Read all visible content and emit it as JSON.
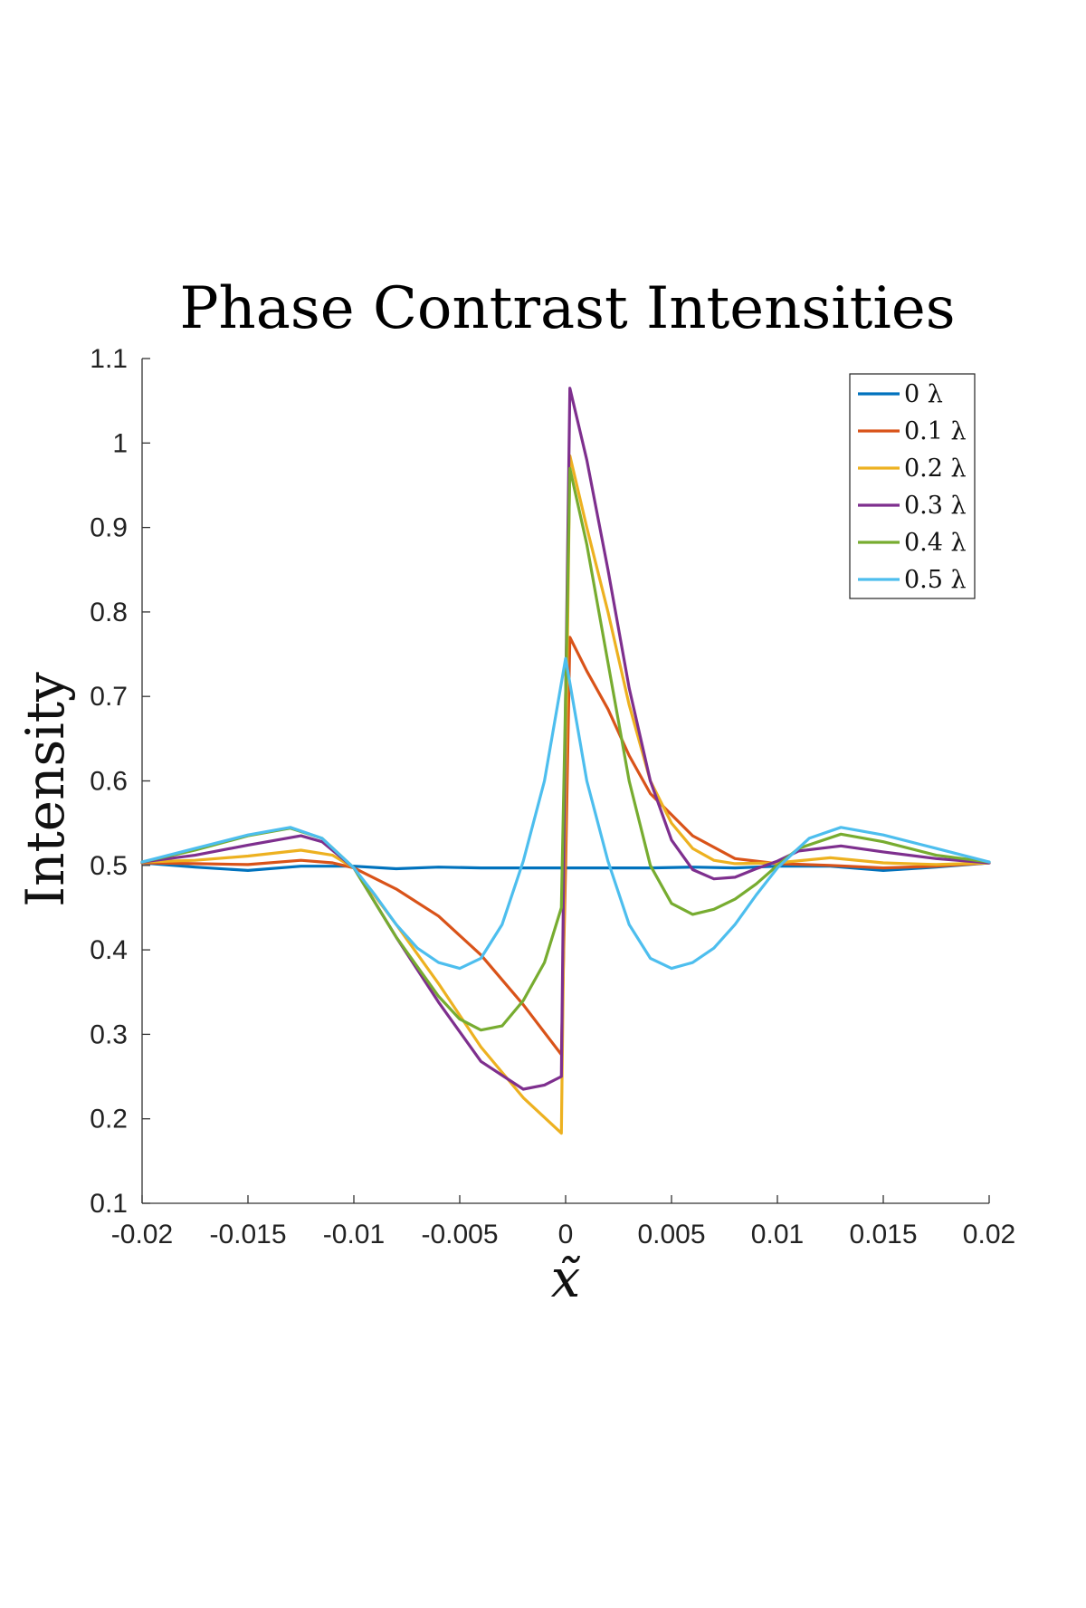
{
  "chart_data": {
    "type": "line",
    "title": "Phase Contrast Intensities",
    "xlabel": "x̃",
    "ylabel": "Intensity",
    "xlim": [
      -0.02,
      0.02
    ],
    "ylim": [
      0.1,
      1.1
    ],
    "xticks": [
      -0.02,
      -0.015,
      -0.01,
      -0.005,
      0,
      0.005,
      0.01,
      0.015,
      0.02
    ],
    "xtick_labels": [
      "-0.02",
      "-0.015",
      "-0.01",
      "-0.005",
      "0",
      "0.005",
      "0.01",
      "0.015",
      "0.02"
    ],
    "yticks": [
      0.1,
      0.2,
      0.3,
      0.4,
      0.5,
      0.6,
      0.7,
      0.8,
      0.9,
      1,
      1.1
    ],
    "ytick_labels": [
      "0.1",
      "0.2",
      "0.3",
      "0.4",
      "0.5",
      "0.6",
      "0.7",
      "0.8",
      "0.9",
      "1",
      "1.1"
    ],
    "grid": false,
    "legend_position": "top-right",
    "series": [
      {
        "name": "0 λ",
        "color": "#0072BD",
        "points": [
          [
            -0.02,
            0.503
          ],
          [
            -0.0175,
            0.498
          ],
          [
            -0.015,
            0.494
          ],
          [
            -0.0125,
            0.499
          ],
          [
            -0.01,
            0.499
          ],
          [
            -0.008,
            0.496
          ],
          [
            -0.006,
            0.498
          ],
          [
            -0.004,
            0.497
          ],
          [
            -0.002,
            0.497
          ],
          [
            -0.0002,
            0.497
          ],
          [
            0.0002,
            0.497
          ],
          [
            0.002,
            0.497
          ],
          [
            0.004,
            0.497
          ],
          [
            0.006,
            0.498
          ],
          [
            0.008,
            0.497
          ],
          [
            0.01,
            0.499
          ],
          [
            0.0125,
            0.499
          ],
          [
            0.015,
            0.494
          ],
          [
            0.0175,
            0.498
          ],
          [
            0.02,
            0.503
          ]
        ]
      },
      {
        "name": "0.1 λ",
        "color": "#D95319",
        "points": [
          [
            -0.02,
            0.503
          ],
          [
            -0.0175,
            0.502
          ],
          [
            -0.015,
            0.501
          ],
          [
            -0.0125,
            0.506
          ],
          [
            -0.011,
            0.503
          ],
          [
            -0.01,
            0.497
          ],
          [
            -0.008,
            0.472
          ],
          [
            -0.006,
            0.44
          ],
          [
            -0.004,
            0.394
          ],
          [
            -0.002,
            0.335
          ],
          [
            -0.0002,
            0.276
          ],
          [
            0.0,
            0.5
          ],
          [
            0.0002,
            0.77
          ],
          [
            0.001,
            0.73
          ],
          [
            0.002,
            0.685
          ],
          [
            0.003,
            0.63
          ],
          [
            0.004,
            0.585
          ],
          [
            0.006,
            0.535
          ],
          [
            0.008,
            0.508
          ],
          [
            0.01,
            0.502
          ],
          [
            0.0125,
            0.5
          ],
          [
            0.015,
            0.497
          ],
          [
            0.0175,
            0.499
          ],
          [
            0.02,
            0.503
          ]
        ]
      },
      {
        "name": "0.2 λ",
        "color": "#EDB120",
        "points": [
          [
            -0.02,
            0.504
          ],
          [
            -0.0175,
            0.506
          ],
          [
            -0.015,
            0.511
          ],
          [
            -0.0125,
            0.518
          ],
          [
            -0.011,
            0.512
          ],
          [
            -0.01,
            0.497
          ],
          [
            -0.008,
            0.43
          ],
          [
            -0.006,
            0.36
          ],
          [
            -0.004,
            0.285
          ],
          [
            -0.002,
            0.225
          ],
          [
            -0.0002,
            0.183
          ],
          [
            0.0,
            0.6
          ],
          [
            0.0002,
            0.985
          ],
          [
            0.001,
            0.9
          ],
          [
            0.002,
            0.8
          ],
          [
            0.003,
            0.69
          ],
          [
            0.004,
            0.6
          ],
          [
            0.005,
            0.55
          ],
          [
            0.006,
            0.52
          ],
          [
            0.007,
            0.506
          ],
          [
            0.008,
            0.502
          ],
          [
            0.01,
            0.503
          ],
          [
            0.0125,
            0.509
          ],
          [
            0.015,
            0.503
          ],
          [
            0.0175,
            0.501
          ],
          [
            0.02,
            0.503
          ]
        ]
      },
      {
        "name": "0.3 λ",
        "color": "#7E2F8E",
        "points": [
          [
            -0.02,
            0.504
          ],
          [
            -0.0175,
            0.512
          ],
          [
            -0.015,
            0.524
          ],
          [
            -0.0125,
            0.535
          ],
          [
            -0.0115,
            0.528
          ],
          [
            -0.01,
            0.497
          ],
          [
            -0.008,
            0.415
          ],
          [
            -0.006,
            0.338
          ],
          [
            -0.004,
            0.268
          ],
          [
            -0.002,
            0.235
          ],
          [
            -0.001,
            0.24
          ],
          [
            -0.0002,
            0.25
          ],
          [
            0.0,
            0.7
          ],
          [
            0.0002,
            1.065
          ],
          [
            0.001,
            0.98
          ],
          [
            0.002,
            0.85
          ],
          [
            0.003,
            0.71
          ],
          [
            0.004,
            0.6
          ],
          [
            0.005,
            0.53
          ],
          [
            0.006,
            0.495
          ],
          [
            0.007,
            0.484
          ],
          [
            0.008,
            0.486
          ],
          [
            0.009,
            0.496
          ],
          [
            0.01,
            0.505
          ],
          [
            0.011,
            0.517
          ],
          [
            0.013,
            0.523
          ],
          [
            0.015,
            0.516
          ],
          [
            0.0175,
            0.508
          ],
          [
            0.02,
            0.503
          ]
        ]
      },
      {
        "name": "0.4 λ",
        "color": "#77AC30",
        "points": [
          [
            -0.02,
            0.504
          ],
          [
            -0.0175,
            0.518
          ],
          [
            -0.015,
            0.535
          ],
          [
            -0.013,
            0.544
          ],
          [
            -0.0115,
            0.532
          ],
          [
            -0.01,
            0.497
          ],
          [
            -0.008,
            0.415
          ],
          [
            -0.006,
            0.345
          ],
          [
            -0.005,
            0.318
          ],
          [
            -0.004,
            0.305
          ],
          [
            -0.003,
            0.31
          ],
          [
            -0.002,
            0.34
          ],
          [
            -0.001,
            0.385
          ],
          [
            -0.0002,
            0.45
          ],
          [
            0.0,
            0.7
          ],
          [
            0.0002,
            0.97
          ],
          [
            0.001,
            0.88
          ],
          [
            0.002,
            0.74
          ],
          [
            0.003,
            0.6
          ],
          [
            0.004,
            0.5
          ],
          [
            0.005,
            0.455
          ],
          [
            0.006,
            0.442
          ],
          [
            0.007,
            0.448
          ],
          [
            0.008,
            0.46
          ],
          [
            0.009,
            0.478
          ],
          [
            0.01,
            0.5
          ],
          [
            0.011,
            0.52
          ],
          [
            0.013,
            0.537
          ],
          [
            0.015,
            0.528
          ],
          [
            0.0175,
            0.512
          ],
          [
            0.02,
            0.504
          ]
        ]
      },
      {
        "name": "0.5 λ",
        "color": "#4DBEEE",
        "points": [
          [
            -0.02,
            0.504
          ],
          [
            -0.0175,
            0.52
          ],
          [
            -0.015,
            0.536
          ],
          [
            -0.013,
            0.545
          ],
          [
            -0.0115,
            0.532
          ],
          [
            -0.01,
            0.497
          ],
          [
            -0.009,
            0.465
          ],
          [
            -0.008,
            0.43
          ],
          [
            -0.007,
            0.402
          ],
          [
            -0.006,
            0.385
          ],
          [
            -0.005,
            0.378
          ],
          [
            -0.004,
            0.39
          ],
          [
            -0.003,
            0.43
          ],
          [
            -0.002,
            0.505
          ],
          [
            -0.001,
            0.6
          ],
          [
            0.0,
            0.745
          ],
          [
            0.001,
            0.6
          ],
          [
            0.002,
            0.505
          ],
          [
            0.003,
            0.43
          ],
          [
            0.004,
            0.39
          ],
          [
            0.005,
            0.378
          ],
          [
            0.006,
            0.385
          ],
          [
            0.007,
            0.402
          ],
          [
            0.008,
            0.43
          ],
          [
            0.009,
            0.465
          ],
          [
            0.01,
            0.497
          ],
          [
            0.0115,
            0.532
          ],
          [
            0.013,
            0.545
          ],
          [
            0.015,
            0.536
          ],
          [
            0.0175,
            0.52
          ],
          [
            0.02,
            0.504
          ]
        ]
      }
    ]
  }
}
